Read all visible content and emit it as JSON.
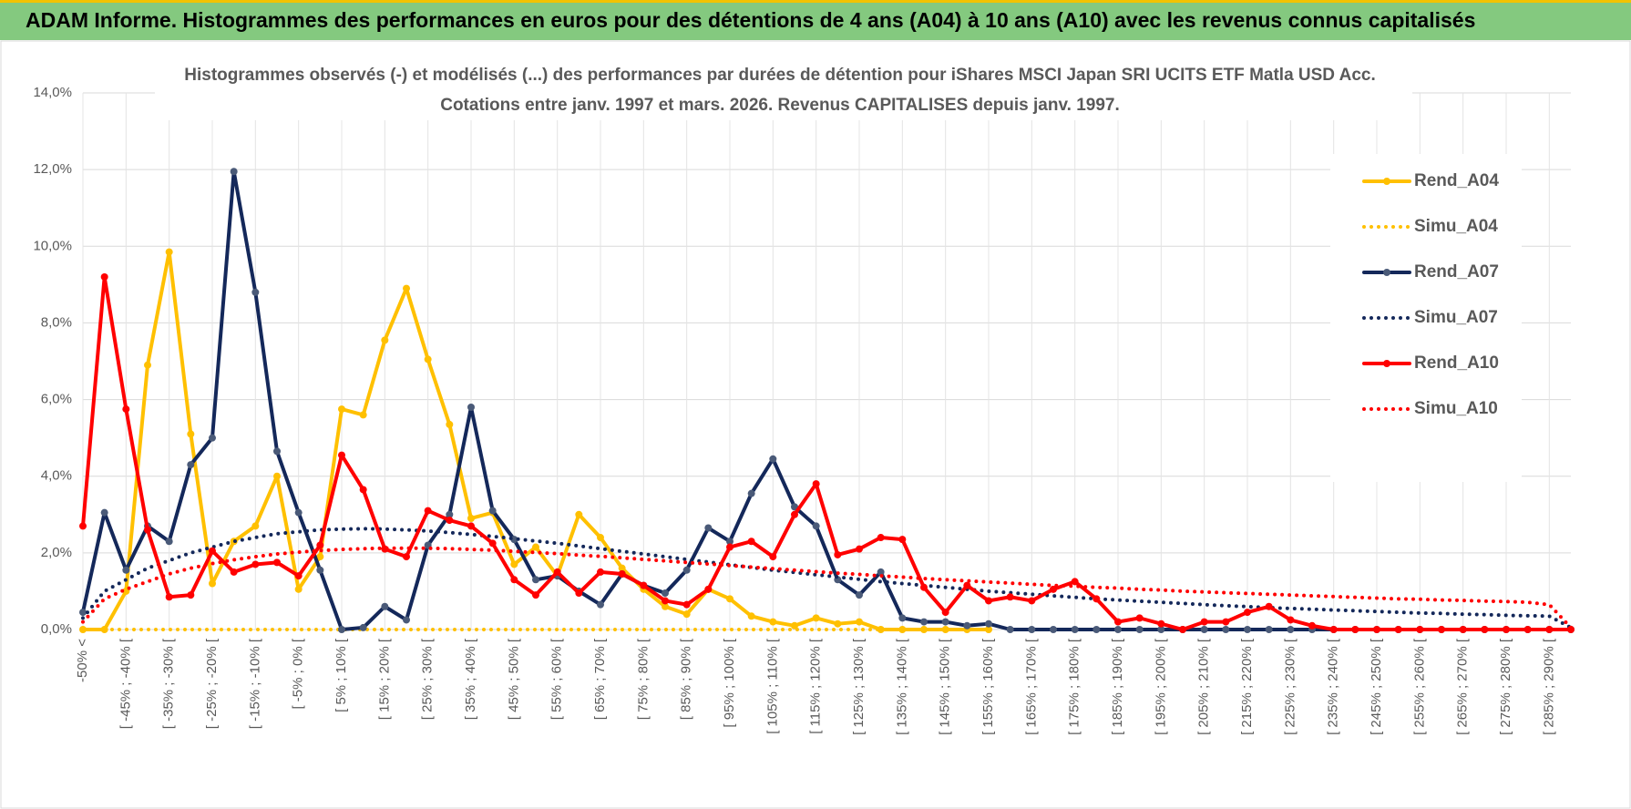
{
  "header": {
    "title": "ADAM Informe. Histogrammes des performances en euros pour des détentions de 4 ans (A04) à 10 ans (A10) avec les revenus connus capitalisés"
  },
  "chart_data": {
    "type": "line",
    "title": "Histogrammes observés (-) et modélisés (...) des performances par durées de détention pour iShares MSCI Japan SRI UCITS ETF Matla USD Acc.",
    "subtitle": "Cotations entre janv. 1997 et mars. 2026. Revenus CAPITALISES depuis janv. 1997.",
    "categories": [
      "-50% <",
      null,
      "[ -45% ; -40% [",
      null,
      "[ -35% ; -30% [",
      null,
      "[ -25% ; -20% [",
      null,
      "[ -15% ; -10% [",
      null,
      "[ -5% ; 0% [",
      null,
      "[ 5% ; 10% [",
      null,
      "[ 15% ; 20% [",
      null,
      "[ 25% ; 30% [",
      null,
      "[ 35% ; 40% [",
      null,
      "[ 45% ; 50% [",
      null,
      "[ 55% ; 60% [",
      null,
      "[ 65% ; 70% [",
      null,
      "[ 75% ; 80% [",
      null,
      "[ 85% ; 90% [",
      null,
      "[ 95% ; 100% [",
      null,
      "[ 105% ; 110% [",
      null,
      "[ 115% ; 120% [",
      null,
      "[ 125% ; 130% [",
      null,
      "[ 135% ; 140% [",
      null,
      "[ 145% ; 150% [",
      null,
      "[ 155% ; 160% [",
      null,
      "[ 165% ; 170% [",
      null,
      "[ 175% ; 180% [",
      null,
      "[ 185% ; 190% [",
      null,
      "[ 195% ; 200% [",
      null,
      "[ 205% ; 210% [",
      null,
      "[ 215% ; 220% [",
      null,
      "[ 225% ; 230% [",
      null,
      "[ 235% ; 240% [",
      null,
      "[ 245% ; 250% [",
      null,
      "[ 255% ; 260% [",
      null,
      "[ 265% ; 270% [",
      null,
      "[ 275% ; 280% [",
      null,
      "[ 285% ; 290% [",
      null
    ],
    "series": [
      {
        "name": "Rend_A04",
        "color": "#ffc000",
        "style": "solid",
        "values": [
          0,
          0,
          1.0,
          6.9,
          9.85,
          5.1,
          1.2,
          2.3,
          2.7,
          4.0,
          1.05,
          1.9,
          5.75,
          5.6,
          7.55,
          8.9,
          7.05,
          5.35,
          2.9,
          3.05,
          1.7,
          2.15,
          1.4,
          3.0,
          2.4,
          1.6,
          1.05,
          0.6,
          0.4,
          1.05,
          0.8,
          0.35,
          0.2,
          0.1,
          0.3,
          0.15,
          0.2,
          0,
          0,
          0,
          0,
          0,
          0,
          null,
          null,
          null,
          null,
          null,
          null,
          null,
          null,
          null,
          null,
          null,
          null,
          null,
          null,
          null,
          null,
          null,
          null,
          null,
          null,
          null,
          null,
          null,
          null,
          null,
          null,
          null
        ]
      },
      {
        "name": "Simu_A04",
        "color": "#ffc000",
        "style": "dotted",
        "values": [
          0,
          0,
          0,
          0,
          0,
          0,
          0,
          0,
          0,
          0,
          0,
          0,
          0,
          0,
          0,
          0,
          0,
          0,
          0,
          0,
          0,
          0,
          0,
          0,
          0,
          0,
          0,
          0,
          0,
          0,
          0,
          0,
          0,
          0,
          0,
          0,
          0,
          0,
          0,
          0,
          0,
          0,
          0,
          null,
          null,
          null,
          null,
          null,
          null,
          null,
          null,
          null,
          null,
          null,
          null,
          null,
          null,
          null,
          null,
          null,
          null,
          null,
          null,
          null,
          null,
          null,
          null,
          null,
          null,
          null
        ]
      },
      {
        "name": "Rend_A07",
        "color": "#14285a",
        "style": "solid",
        "values": [
          0.45,
          3.05,
          1.55,
          2.7,
          2.3,
          4.3,
          5.0,
          11.95,
          8.8,
          4.65,
          3.05,
          1.55,
          0,
          0.05,
          0.6,
          0.25,
          2.2,
          3.0,
          5.8,
          3.1,
          2.35,
          1.3,
          1.4,
          1.0,
          0.65,
          1.45,
          1.15,
          0.95,
          1.55,
          2.65,
          2.3,
          3.55,
          4.45,
          3.2,
          2.7,
          1.3,
          0.9,
          1.5,
          0.3,
          0.2,
          0.2,
          0.1,
          0.15,
          0,
          0,
          0,
          0,
          0,
          0,
          0,
          0,
          0,
          0,
          0,
          0,
          0,
          0,
          0,
          0,
          0,
          0,
          0,
          0,
          0,
          0,
          0,
          0,
          0,
          0,
          0
        ]
      },
      {
        "name": "Simu_A07",
        "color": "#14285a",
        "style": "dotted",
        "values": [
          0.3,
          1.0,
          1.3,
          1.6,
          1.8,
          2.0,
          2.15,
          2.3,
          2.4,
          2.5,
          2.55,
          2.6,
          2.62,
          2.63,
          2.62,
          2.6,
          2.57,
          2.53,
          2.48,
          2.43,
          2.37,
          2.31,
          2.25,
          2.18,
          2.11,
          2.04,
          1.97,
          1.9,
          1.83,
          1.76,
          1.69,
          1.62,
          1.55,
          1.49,
          1.43,
          1.37,
          1.31,
          1.25,
          1.2,
          1.15,
          1.1,
          1.05,
          1.0,
          0.96,
          0.92,
          0.88,
          0.84,
          0.8,
          0.77,
          0.74,
          0.71,
          0.68,
          0.65,
          0.62,
          0.6,
          0.57,
          0.55,
          0.53,
          0.51,
          0.49,
          0.47,
          0.45,
          0.43,
          0.42,
          0.4,
          0.39,
          0.37,
          0.36,
          0.35,
          0.05
        ]
      },
      {
        "name": "Rend_A10",
        "color": "#ff0000",
        "style": "solid",
        "values": [
          2.7,
          9.2,
          5.75,
          2.6,
          0.85,
          0.9,
          2.05,
          1.5,
          1.7,
          1.75,
          1.4,
          2.2,
          4.55,
          3.65,
          2.1,
          1.9,
          3.1,
          2.85,
          2.7,
          2.25,
          1.3,
          0.9,
          1.5,
          0.95,
          1.5,
          1.45,
          1.15,
          0.75,
          0.65,
          1.05,
          2.15,
          2.3,
          1.9,
          3.0,
          3.8,
          1.95,
          2.1,
          2.4,
          2.35,
          1.1,
          0.45,
          1.15,
          0.75,
          0.85,
          0.75,
          1.05,
          1.25,
          0.8,
          0.2,
          0.3,
          0.15,
          0,
          0.2,
          0.2,
          0.45,
          0.6,
          0.25,
          0.1,
          0,
          0,
          0,
          0,
          0,
          0,
          0,
          0,
          0,
          0,
          0,
          0
        ]
      },
      {
        "name": "Simu_A10",
        "color": "#ff0000",
        "style": "dotted",
        "values": [
          0.2,
          0.8,
          1.05,
          1.25,
          1.45,
          1.6,
          1.72,
          1.82,
          1.9,
          1.97,
          2.02,
          2.06,
          2.09,
          2.11,
          2.12,
          2.12,
          2.12,
          2.11,
          2.09,
          2.07,
          2.04,
          2.01,
          1.98,
          1.94,
          1.91,
          1.87,
          1.83,
          1.79,
          1.75,
          1.71,
          1.67,
          1.63,
          1.59,
          1.55,
          1.51,
          1.47,
          1.44,
          1.4,
          1.37,
          1.33,
          1.3,
          1.27,
          1.24,
          1.21,
          1.18,
          1.15,
          1.13,
          1.1,
          1.08,
          1.05,
          1.03,
          1.0,
          0.98,
          0.96,
          0.94,
          0.92,
          0.9,
          0.88,
          0.86,
          0.84,
          0.82,
          0.8,
          0.79,
          0.77,
          0.76,
          0.74,
          0.73,
          0.71,
          0.65,
          0.05
        ]
      }
    ],
    "ylim": [
      0,
      14
    ],
    "yticks": [
      {
        "value": 0,
        "label": "0,0%"
      },
      {
        "value": 2,
        "label": "2,0%"
      },
      {
        "value": 4,
        "label": "4,0%"
      },
      {
        "value": 6,
        "label": "6,0%"
      },
      {
        "value": 8,
        "label": "8,0%"
      },
      {
        "value": 10,
        "label": "10,0%"
      },
      {
        "value": 12,
        "label": "12,0%"
      },
      {
        "value": 14,
        "label": "14,0%"
      }
    ],
    "grid": true,
    "legend": "right"
  }
}
